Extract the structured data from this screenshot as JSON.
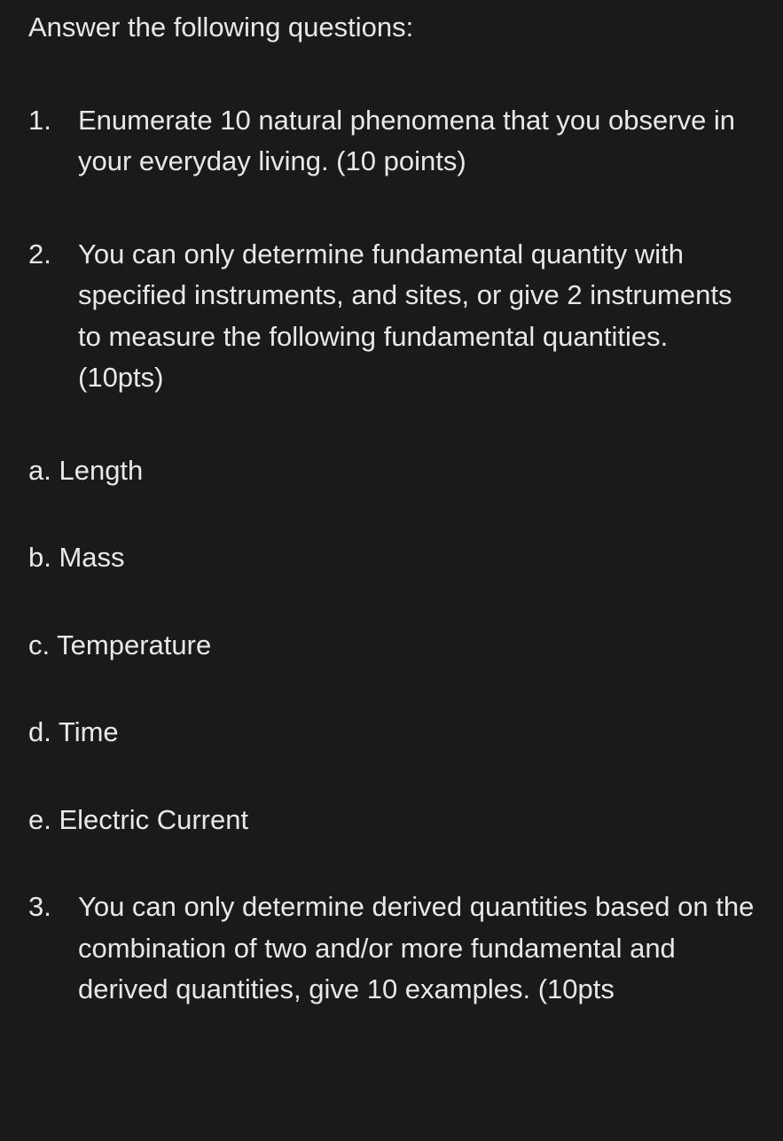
{
  "intro": "Answer the following questions:",
  "questions": [
    {
      "number": "1.",
      "text": "Enumerate 10 natural phenomena that you observe in your everyday living. (10 points)"
    },
    {
      "number": "2.",
      "text": "You can only determine fundamental quantity with specified instruments, and sites, or give 2 instruments to measure the following fundamental quantities. (10pts)"
    },
    {
      "number": "3.",
      "text": "You can only determine derived quantities based on the combination of two and/or more fundamental and derived quantities, give 10 examples. (10pts"
    }
  ],
  "subitems": [
    {
      "label": "a. Length"
    },
    {
      "label": "b. Mass"
    },
    {
      "label": "c. Temperature"
    },
    {
      "label": "d. Time"
    },
    {
      "label": "e. Electric Current"
    }
  ],
  "colors": {
    "background": "#1a1a1a",
    "text": "#e8e8e8"
  },
  "typography": {
    "fontsize": 31,
    "line_height": 1.5
  }
}
